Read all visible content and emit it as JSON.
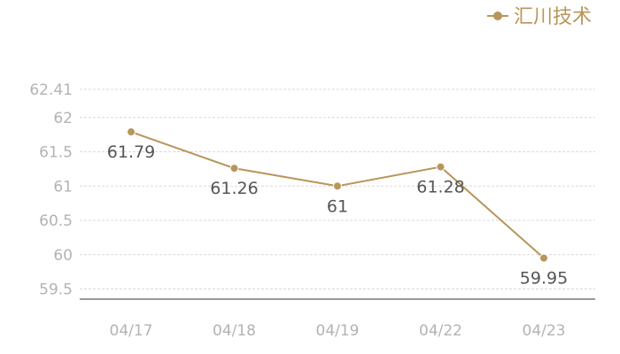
{
  "chart_data": {
    "type": "line",
    "categories": [
      "04/17",
      "04/18",
      "04/19",
      "04/22",
      "04/23"
    ],
    "series": [
      {
        "name": "汇川技术",
        "values": [
          61.79,
          61.26,
          61,
          61.28,
          59.95
        ],
        "labels": [
          "61.79",
          "61.26",
          "61",
          "61.28",
          "59.95"
        ]
      }
    ],
    "yticks": [
      "59.5",
      "60",
      "60.5",
      "61",
      "61.5",
      "62",
      "62.41"
    ],
    "ylim": [
      59.5,
      62.41
    ],
    "grid": true,
    "legend_position": "top-right",
    "colors": {
      "series": "#b8955a",
      "grid": "#d9d9d9",
      "axis": "#333333",
      "tick_text": "#b3b3b3",
      "label_text": "#555555"
    }
  }
}
